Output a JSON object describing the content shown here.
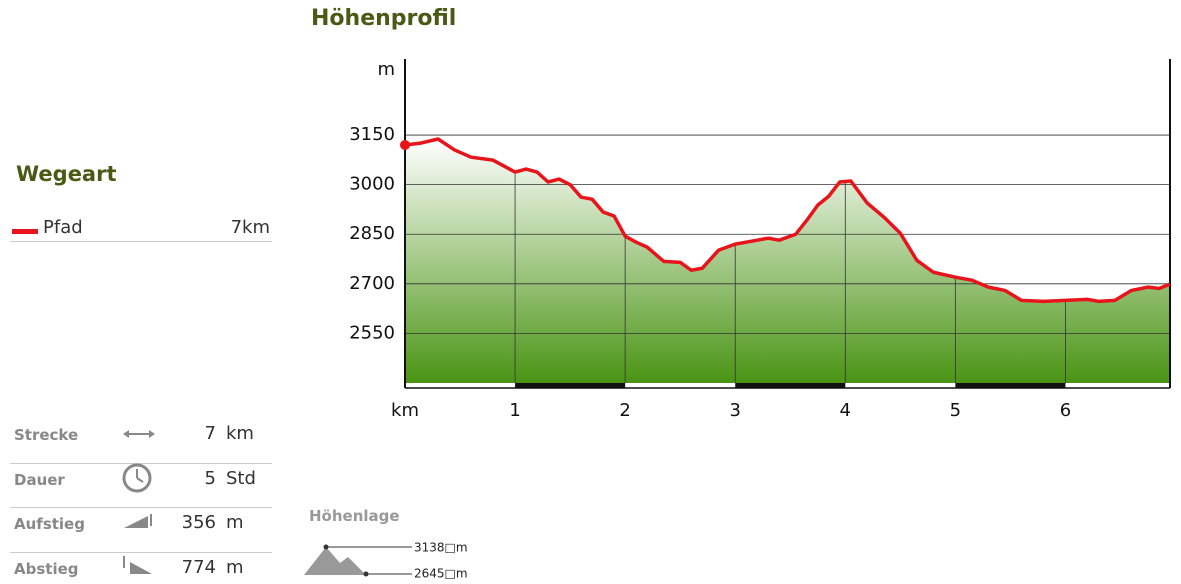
{
  "chart_data": {
    "type": "line",
    "title": "Höhenprofil",
    "y_unit": "m",
    "x_label": "km",
    "x": [
      0,
      0.15,
      0.3,
      0.45,
      0.6,
      0.8,
      1.0,
      1.1,
      1.2,
      1.3,
      1.4,
      1.5,
      1.6,
      1.7,
      1.8,
      1.9,
      2.0,
      2.1,
      2.2,
      2.35,
      2.5,
      2.6,
      2.7,
      2.85,
      3.0,
      3.15,
      3.3,
      3.4,
      3.55,
      3.65,
      3.75,
      3.85,
      3.95,
      4.05,
      4.2,
      4.35,
      4.5,
      4.65,
      4.8,
      5.0,
      5.15,
      5.3,
      5.45,
      5.6,
      5.8,
      6.0,
      6.2,
      6.3,
      6.45,
      6.6,
      6.75,
      6.85,
      6.95
    ],
    "series": [
      {
        "name": "Pfad",
        "color": "#e8141b",
        "values": [
          3120,
          3126,
          3138,
          3105,
          3083,
          3074,
          3038,
          3047,
          3038,
          3008,
          3017,
          3000,
          2962,
          2956,
          2917,
          2905,
          2844,
          2826,
          2811,
          2768,
          2765,
          2741,
          2747,
          2802,
          2820,
          2829,
          2838,
          2832,
          2850,
          2892,
          2938,
          2965,
          3008,
          3011,
          2944,
          2902,
          2853,
          2771,
          2735,
          2720,
          2711,
          2690,
          2680,
          2650,
          2647,
          2650,
          2653,
          2647,
          2650,
          2680,
          2690,
          2686,
          2699
        ]
      }
    ],
    "xlim": [
      0,
      6.95
    ],
    "ylim": [
      2400,
      3380
    ],
    "xticks": [
      1,
      2,
      3,
      4,
      5,
      6
    ],
    "yticks": [
      2550,
      2700,
      2850,
      3000,
      3150
    ],
    "grid": true
  },
  "legend": {
    "title": "Wegeart",
    "items": [
      {
        "length": "7km"
      }
    ]
  },
  "stats": [
    {
      "label": "Strecke",
      "value": 7,
      "unit": "km"
    },
    {
      "label": "Dauer",
      "value": 5,
      "unit": "Std"
    },
    {
      "label": "Aufstieg",
      "value": 356,
      "unit": "m"
    },
    {
      "label": "Abstieg",
      "value": 774,
      "unit": "m"
    }
  ],
  "elevation": {
    "title": "Höhenlage",
    "max": "3138□m",
    "min": "2645□m"
  }
}
